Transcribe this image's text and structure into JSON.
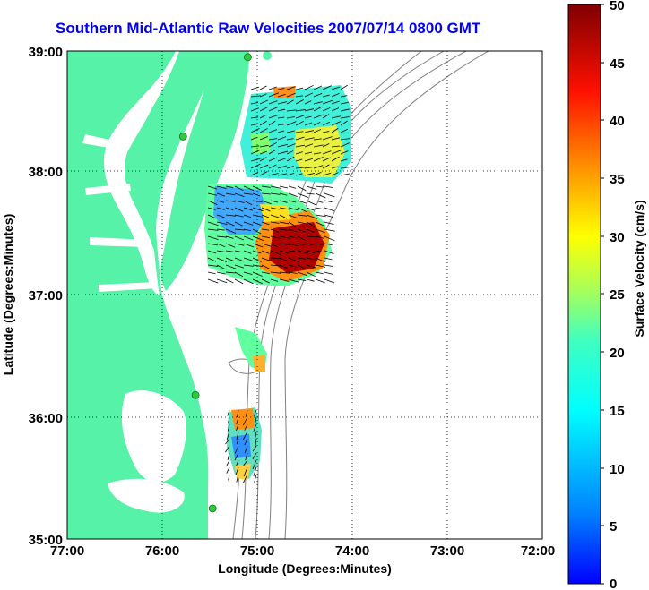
{
  "title": "Southern Mid-Atlantic Raw Velocities 2007/07/14 0800 GMT",
  "x_axis": {
    "label": "Longitude (Degrees:Minutes)",
    "ticks": [
      "77:00",
      "76:00",
      "75:00",
      "74:00",
      "73:00",
      "72:00"
    ]
  },
  "y_axis": {
    "label": "Latitude (Degrees:Minutes)",
    "ticks": [
      "39:00",
      "38:00",
      "37:00",
      "36:00",
      "35:00"
    ]
  },
  "colorbar": {
    "label": "Surface Velocity (cm/s)",
    "ticks": [
      "50",
      "45",
      "40",
      "35",
      "30",
      "25",
      "20",
      "15",
      "10",
      "5",
      "0"
    ],
    "min": 0,
    "max": 50,
    "colormap": "jet"
  },
  "colors": {
    "land": "#55f2a8",
    "title": "#0000ee",
    "grid": "#000000",
    "bathymetry": "#808080",
    "station_marker": "#2fcb3a"
  },
  "stations": [
    {
      "lon": -75.1,
      "lat": 38.95
    },
    {
      "lon": -75.78,
      "lat": 38.3
    },
    {
      "lon": -75.65,
      "lat": 36.18
    },
    {
      "lon": -75.47,
      "lat": 35.25
    }
  ]
}
